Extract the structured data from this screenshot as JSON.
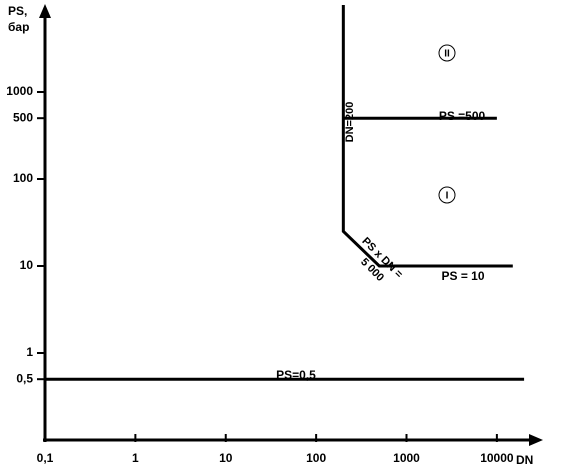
{
  "chart_data": {
    "type": "line",
    "ylabel": [
      "PS,",
      "бар"
    ],
    "xlabel": "DN",
    "xlog": true,
    "ylog": true,
    "grid": false,
    "xlim": [
      0.1,
      30000
    ],
    "ylim": [
      0.1,
      10000
    ],
    "xticks": [
      {
        "value": 0.1,
        "label": "0,1"
      },
      1,
      10,
      100,
      1000,
      10000
    ],
    "yticks": [
      {
        "value": 0.5,
        "label": "0,5"
      },
      1,
      10,
      100,
      500,
      1000
    ],
    "series": [
      {
        "color": "#000000",
        "x": [
          200,
          200,
          500,
          15000
        ],
        "values": [
          10000,
          25,
          10,
          10
        ]
      },
      {
        "color": "#000000",
        "x": [
          200,
          10000
        ],
        "values": [
          500,
          500
        ]
      },
      {
        "color": "#000000",
        "x": [
          0.1,
          20000
        ],
        "values": [
          0.5,
          0.5
        ]
      }
    ],
    "annotations": [
      "PS =500",
      "PS = 10",
      "PS=0,5",
      "DN=200",
      "PS x DN =",
      "5 000"
    ],
    "regions": [
      "II",
      "I"
    ]
  }
}
